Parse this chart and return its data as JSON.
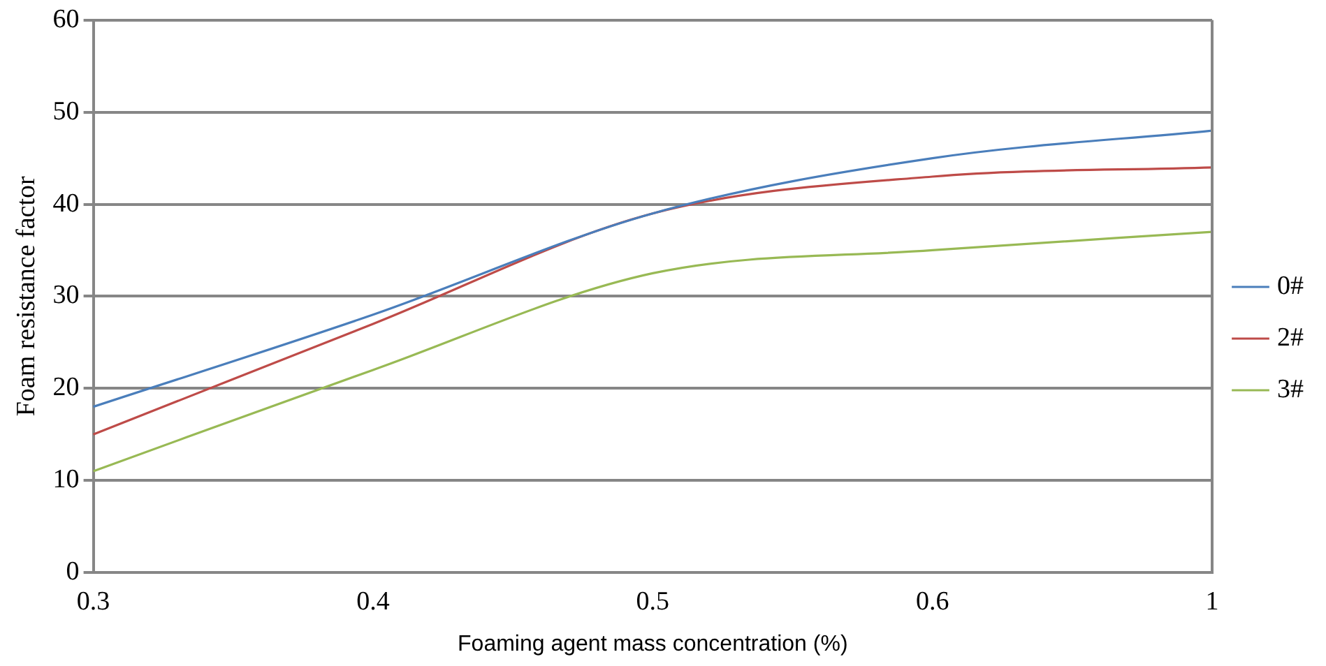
{
  "chart_data": {
    "type": "line",
    "xlabel": "Foaming agent mass concentration (%)",
    "ylabel": "Foam resistance factor",
    "categories": [
      "0.3",
      "0.4",
      "0.5",
      "0.6",
      "1"
    ],
    "series": [
      {
        "name": "0#",
        "color": "#4a7ebb",
        "values": [
          18,
          28,
          39,
          45,
          48
        ]
      },
      {
        "name": "2#",
        "color": "#be4b48",
        "values": [
          15,
          27,
          39,
          43,
          44
        ]
      },
      {
        "name": "3#",
        "color": "#98b954",
        "values": [
          11,
          22,
          32.5,
          35,
          37
        ]
      }
    ],
    "ylim": [
      0,
      60
    ],
    "yticks": [
      0,
      10,
      20,
      30,
      40,
      50,
      60
    ],
    "grid": "y",
    "legend": "right",
    "marker": "none",
    "line_style": "solid"
  }
}
